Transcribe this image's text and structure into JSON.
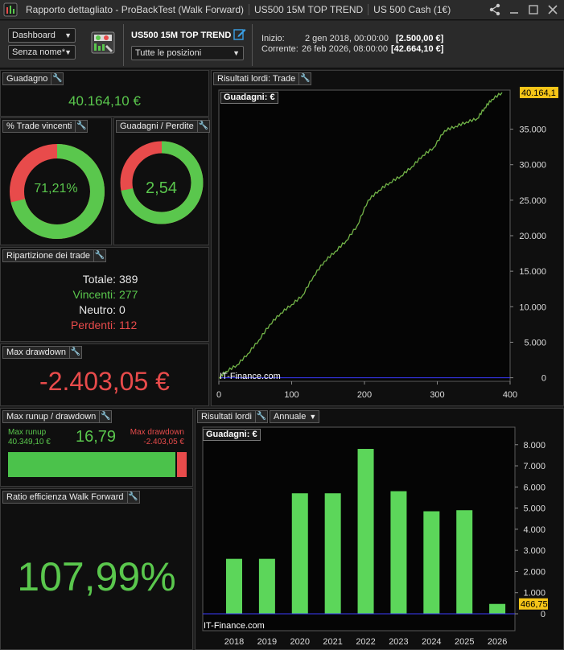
{
  "titlebar": {
    "segments": [
      "Rapporto dettagliato - ProBackTest (Walk Forward)",
      "US500 15M TOP TREND",
      "US 500 Cash (1€)"
    ]
  },
  "header": {
    "dashboard_select": "Dashboard",
    "name_select": "Senza nome*",
    "strategy_name": "US500 15M TOP TREND",
    "positions_select": "Tutte le posizioni",
    "start_label": "Inizio:",
    "start_date": "2 gen 2018, 00:00:00",
    "start_value": "[2.500,00 €]",
    "current_label": "Corrente:",
    "current_date": "26 feb 2026, 08:00:00",
    "current_value": "[42.664,10 €]"
  },
  "guadagno": {
    "title": "Guadagno",
    "value": "40.164,10 €"
  },
  "win_pct": {
    "title": "% Trade vincenti",
    "value": "71,21%",
    "fraction": 0.7121
  },
  "gains_losses": {
    "title": "Guadagni / Perdite",
    "value": "2,54",
    "fraction": 0.7175
  },
  "breakdown": {
    "title": "Ripartizione dei trade",
    "total_label": "Totale:",
    "total": "389",
    "win_label": "Vincenti:",
    "win": "277",
    "neutral_label": "Neutro:",
    "neutral": "0",
    "loss_label": "Perdenti:",
    "loss": "112"
  },
  "max_drawdown": {
    "title": "Max drawdown",
    "value": "-2.403,05 €"
  },
  "runup": {
    "title": "Max runup / drawdown",
    "runup_label": "Max runup",
    "runup_value": "40.349,10 €",
    "ratio": "16,79",
    "drawdown_label": "Max drawdown",
    "drawdown_value": "-2.403,05 €",
    "runup_fraction": 0.9438
  },
  "wf_ratio": {
    "title": "Ratio efficienza Walk Forward",
    "value": "107,99%"
  },
  "gross_trade": {
    "title": "Risultati lordi: Trade",
    "chart_label": "Guadagni: €",
    "watermark": "IT-Finance.com",
    "last_value_label": "40.164,1"
  },
  "gross_annual": {
    "title": "Risultati lordi",
    "period_select": "Annuale",
    "chart_label": "Guadagni: €",
    "watermark": "IT-Finance.com",
    "last_value_label": "466,75"
  },
  "colors": {
    "green": "#5ac74d",
    "red": "#e84b4b",
    "bar": "#5cd65a",
    "line": "#4a9a3a",
    "zero_line": "#3a3aff",
    "highlight": "#f5c518"
  },
  "icons": [
    "share-icon",
    "minimize-icon",
    "maximize-icon",
    "close-icon",
    "wrench-icon",
    "strategy-icon",
    "edit-icon",
    "chevron-down-icon"
  ],
  "chart_data": [
    {
      "type": "line",
      "title": "Guadagni: €",
      "x_ticks": [
        "0",
        "100",
        "200",
        "300",
        "400"
      ],
      "y_ticks": [
        "0",
        "5.000",
        "10.000",
        "15.000",
        "20.000",
        "25.000",
        "30.000",
        "35.000"
      ],
      "xlim": [
        0,
        400
      ],
      "ylim": [
        -500,
        40500
      ],
      "x": [
        0,
        10,
        25,
        40,
        55,
        70,
        85,
        100,
        115,
        130,
        145,
        160,
        175,
        190,
        205,
        220,
        235,
        250,
        265,
        280,
        295,
        310,
        325,
        340,
        355,
        365,
        375,
        389
      ],
      "y": [
        0,
        900,
        1800,
        3400,
        5300,
        7500,
        9100,
        10300,
        11600,
        14300,
        16400,
        17800,
        19300,
        21400,
        25000,
        26400,
        27500,
        28400,
        29700,
        31300,
        32400,
        34800,
        35400,
        36000,
        36500,
        38000,
        39200,
        40164
      ],
      "last_value": 40164.1
    },
    {
      "type": "bar",
      "title": "Guadagni: €",
      "categories": [
        "2018",
        "2019",
        "2020",
        "2021",
        "2022",
        "2023",
        "2024",
        "2025",
        "2026"
      ],
      "values": [
        2600,
        2600,
        5700,
        5700,
        7800,
        5800,
        4850,
        4900,
        467
      ],
      "y_ticks": [
        "0",
        "1.000",
        "2.000",
        "3.000",
        "4.000",
        "5.000",
        "6.000",
        "7.000",
        "8.000"
      ],
      "ylim": [
        0,
        8600
      ],
      "last_value": 466.75
    }
  ]
}
